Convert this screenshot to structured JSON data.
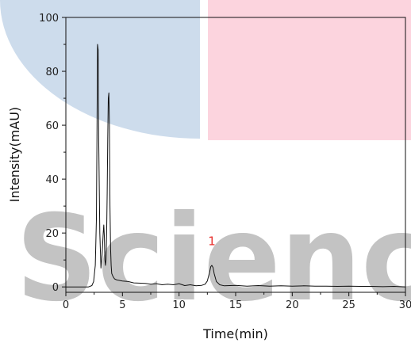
{
  "watermark": {
    "text": "Scienc",
    "colors": {
      "blue": "#cddcec",
      "pink": "#fcd4de",
      "gray": "#c3c3c3"
    }
  },
  "chart_data": {
    "type": "line",
    "xlabel": "Time(min)",
    "ylabel": "Intensity(mAU)",
    "xlim": [
      0,
      30
    ],
    "ylim": [
      -2,
      100
    ],
    "xticks": [
      0,
      5,
      10,
      15,
      20,
      25,
      30
    ],
    "yticks": [
      0,
      20,
      40,
      60,
      80,
      100
    ],
    "grid": false,
    "line_color": "#111111",
    "annotation_color": "#e8322f",
    "annotations": [
      {
        "text": "1",
        "x": 12.9,
        "y": 15.5
      }
    ],
    "series": [
      {
        "x": [
          0,
          1.0,
          2.0,
          2.3,
          2.45,
          2.6,
          2.7,
          2.75,
          2.8,
          2.85,
          2.9,
          3.0,
          3.1,
          3.2,
          3.3,
          3.35,
          3.4,
          3.45,
          3.5,
          3.55,
          3.6,
          3.65,
          3.7,
          3.75,
          3.8,
          3.85,
          3.9,
          3.95,
          4.0,
          4.05,
          4.15,
          4.3,
          4.5,
          5.0,
          5.5,
          6.0,
          7.0,
          7.5,
          8.0,
          8.5,
          9.0,
          9.5,
          10.0,
          10.5,
          11.0,
          11.5,
          12.0,
          12.3,
          12.5,
          12.7,
          12.8,
          12.9,
          13.0,
          13.1,
          13.3,
          13.6,
          14.0,
          15.0,
          16.0,
          17.0,
          18.0,
          19.0,
          20.0,
          21.0,
          22.0,
          23.0,
          24.0,
          25.0,
          26.0,
          27.0,
          28.0,
          29.0,
          30.0
        ],
        "y": [
          0,
          0,
          0,
          0.5,
          2,
          8,
          25,
          55,
          90,
          88,
          55,
          20,
          7,
          12,
          20,
          23,
          19,
          10,
          8,
          10,
          20,
          35,
          55,
          70,
          72,
          60,
          30,
          14,
          8,
          5,
          4,
          3,
          2.6,
          2.2,
          2,
          1.5,
          1.3,
          1.0,
          1.2,
          0.8,
          1.0,
          0.8,
          1.2,
          0.5,
          0.8,
          0.4,
          0.6,
          1.0,
          2.2,
          5.5,
          7.5,
          8.0,
          7.2,
          5.0,
          2.0,
          0.8,
          0.4,
          0.6,
          0.3,
          0.5,
          0.3,
          0.4,
          0.3,
          0.4,
          0.3,
          0.3,
          0.2,
          0.3,
          0.2,
          0.2,
          0.1,
          0.2,
          0.0
        ]
      }
    ]
  }
}
